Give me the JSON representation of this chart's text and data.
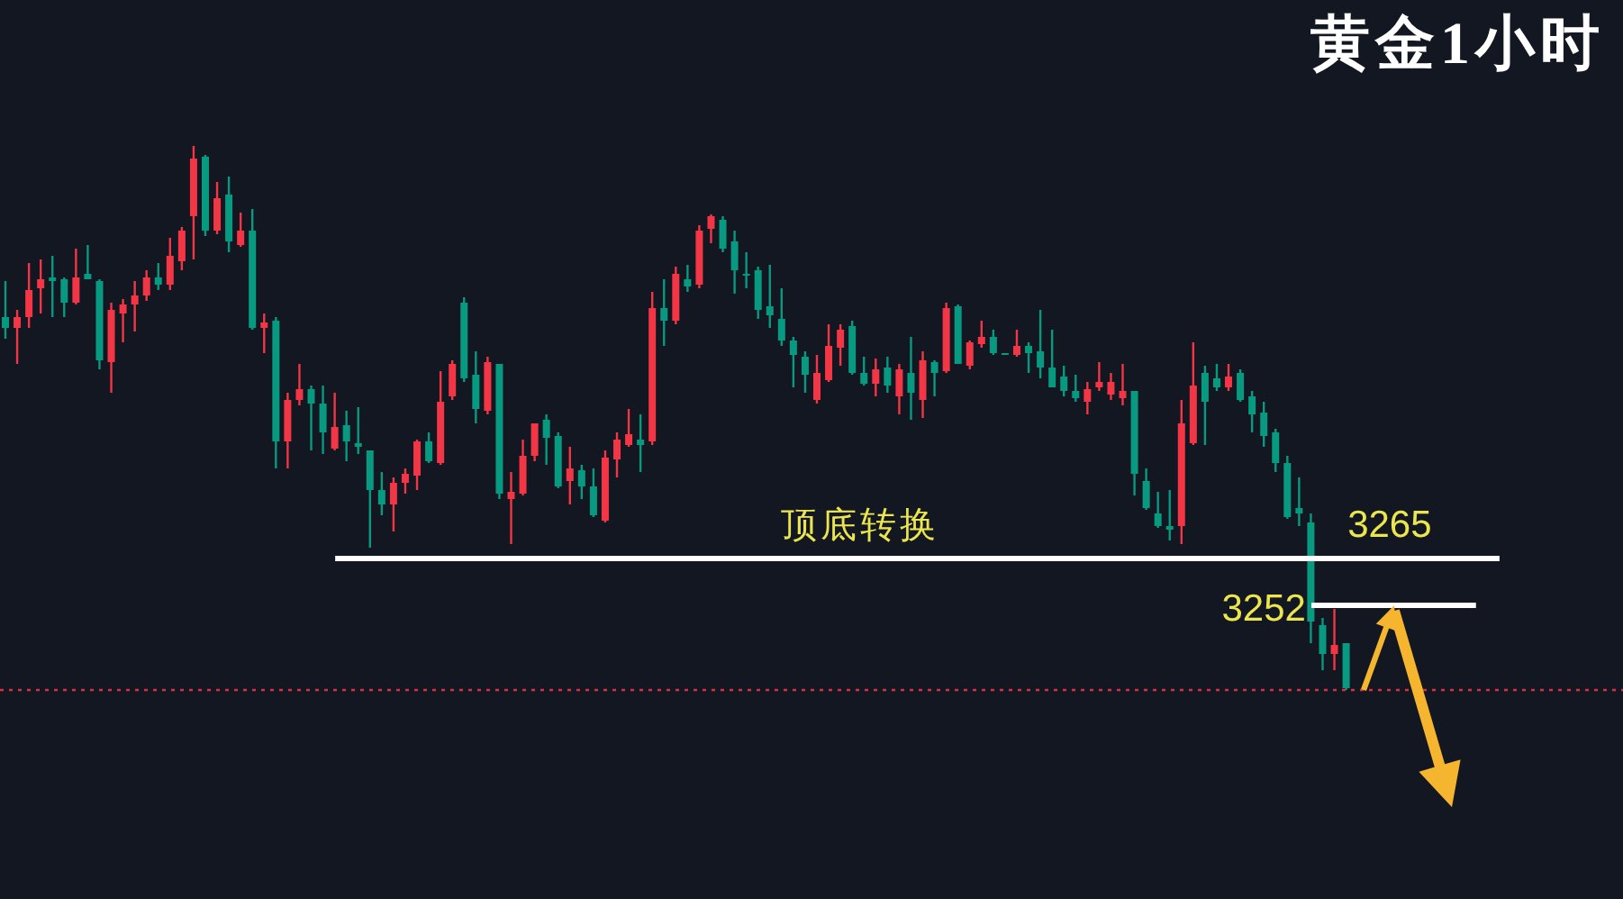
{
  "chart_data": {
    "type": "candlestick",
    "title": "黄金1小时",
    "categories": [
      null,
      null,
      null,
      null,
      null,
      null,
      null,
      null,
      null,
      null,
      null,
      null,
      null,
      null,
      null,
      null,
      null,
      null,
      null,
      null,
      null,
      null,
      null,
      null,
      null,
      null,
      null,
      null,
      null,
      null,
      null,
      null,
      null,
      null,
      null,
      null,
      null,
      null,
      null,
      null,
      null,
      null,
      null,
      null,
      null,
      null,
      null,
      null,
      null,
      null,
      null,
      null,
      null,
      null,
      null,
      null,
      null,
      null,
      null,
      null,
      null,
      null,
      null,
      null,
      null,
      null,
      null,
      null,
      null,
      null,
      null,
      null,
      null,
      null,
      null,
      null,
      null,
      null,
      null,
      null,
      null,
      null,
      null,
      null,
      null,
      null,
      null,
      null,
      null,
      null,
      null,
      null,
      null,
      null,
      null,
      null,
      null,
      null,
      null,
      null,
      null,
      null,
      null,
      null,
      null,
      null,
      null,
      null,
      null,
      null,
      null,
      null,
      null,
      null,
      null
    ],
    "ohlc": [
      [
        3332,
        3342,
        3326,
        3329
      ],
      [
        3329,
        3334,
        3319,
        3332
      ],
      [
        3332,
        3347,
        3329,
        3339.5
      ],
      [
        3340,
        3348,
        3333,
        3342.5
      ],
      [
        3343,
        3349,
        3332,
        3342
      ],
      [
        3342.5,
        3343,
        3332,
        3336
      ],
      [
        3336,
        3351,
        3335.5,
        3343
      ],
      [
        3344,
        3352,
        3342.5,
        3342.5
      ],
      [
        3342,
        3342.5,
        3317.5,
        3320
      ],
      [
        3319.5,
        3336,
        3311,
        3334
      ],
      [
        3333,
        3337,
        3325,
        3335.5
      ],
      [
        3335.5,
        3342,
        3328,
        3338
      ],
      [
        3338,
        3345,
        3336.5,
        3343
      ],
      [
        3343,
        3347,
        3339.5,
        3341
      ],
      [
        3341,
        3354,
        3339.5,
        3349
      ],
      [
        3347.5,
        3357,
        3345,
        3356
      ],
      [
        3360,
        3379.5,
        3348,
        3376
      ],
      [
        3376.5,
        3377,
        3354.5,
        3356
      ],
      [
        3356,
        3369.5,
        3355,
        3365
      ],
      [
        3366,
        3371,
        3350,
        3353
      ],
      [
        3352,
        3361,
        3351.5,
        3356
      ],
      [
        3356,
        3362,
        3328.5,
        3329
      ],
      [
        3329,
        3333,
        3322,
        3330.5
      ],
      [
        3331,
        3332,
        3290,
        3297.5
      ],
      [
        3297.5,
        3311,
        3290,
        3309
      ],
      [
        3309,
        3319,
        3307.5,
        3312
      ],
      [
        3312,
        3313,
        3295,
        3308
      ],
      [
        3308,
        3313,
        3294,
        3300
      ],
      [
        3295.5,
        3311,
        3295,
        3301.5
      ],
      [
        3302,
        3306,
        3292,
        3297.5
      ],
      [
        3297,
        3307,
        3294,
        3296
      ],
      [
        3295,
        3295,
        3268,
        3284
      ],
      [
        3284,
        3289,
        3277,
        3280
      ],
      [
        3280,
        3287.5,
        3272.5,
        3286
      ],
      [
        3286,
        3290,
        3283,
        3288.5
      ],
      [
        3288,
        3298,
        3284,
        3297.5
      ],
      [
        3297.5,
        3300,
        3291.5,
        3292
      ],
      [
        3291.5,
        3317,
        3291,
        3308.5
      ],
      [
        3310,
        3320,
        3309,
        3319
      ],
      [
        3336,
        3337.5,
        3314,
        3315
      ],
      [
        3316,
        3322.5,
        3302.5,
        3306.5
      ],
      [
        3306,
        3321,
        3305,
        3319.5
      ],
      [
        3319,
        3319,
        3281.5,
        3283
      ],
      [
        3281.5,
        3289,
        3269,
        3283.5
      ],
      [
        3283,
        3298,
        3282.5,
        3293.5
      ],
      [
        3293.5,
        3302.5,
        3292,
        3302.5
      ],
      [
        3303.5,
        3305,
        3291,
        3298.5
      ],
      [
        3299,
        3300,
        3284.5,
        3285
      ],
      [
        3286.5,
        3296,
        3280,
        3290
      ],
      [
        3289.5,
        3291,
        3281.5,
        3285
      ],
      [
        3285,
        3290,
        3276.5,
        3277
      ],
      [
        3275.5,
        3295,
        3275,
        3293
      ],
      [
        3292.5,
        3300,
        3287.5,
        3298
      ],
      [
        3296.5,
        3306.5,
        3296,
        3299.5
      ],
      [
        3298,
        3305,
        3289,
        3296.5
      ],
      [
        3297.5,
        3339,
        3296.5,
        3334.5
      ],
      [
        3334.5,
        3342.5,
        3324,
        3331
      ],
      [
        3331,
        3346,
        3330,
        3344
      ],
      [
        3342.5,
        3346.5,
        3339,
        3340.5
      ],
      [
        3341,
        3357.5,
        3340,
        3356
      ],
      [
        3356.5,
        3360.5,
        3352.5,
        3360
      ],
      [
        3359,
        3360,
        3350,
        3351
      ],
      [
        3353,
        3356,
        3338.5,
        3345
      ],
      [
        3344,
        3350,
        3340,
        3343.5
      ],
      [
        3345,
        3346,
        3331.5,
        3334
      ],
      [
        3335,
        3346.5,
        3329,
        3332.5
      ],
      [
        3331.5,
        3340,
        3324,
        3325.5
      ],
      [
        3325.5,
        3326.5,
        3312.5,
        3321.5
      ],
      [
        3321,
        3322.5,
        3311,
        3316
      ],
      [
        3309,
        3321.5,
        3308,
        3316.5
      ],
      [
        3314.5,
        3330,
        3314,
        3324
      ],
      [
        3323.5,
        3330,
        3318.5,
        3328.5
      ],
      [
        3329.5,
        3331,
        3316,
        3316.5
      ],
      [
        3316.5,
        3321,
        3313,
        3313.5
      ],
      [
        3313.5,
        3320.5,
        3310,
        3317.5
      ],
      [
        3318,
        3321,
        3311,
        3313
      ],
      [
        3310,
        3319,
        3305,
        3317.5
      ],
      [
        3316.5,
        3326.5,
        3303.5,
        3311
      ],
      [
        3309,
        3322.5,
        3304,
        3320
      ],
      [
        3319.5,
        3320,
        3310,
        3316.5
      ],
      [
        3317,
        3336,
        3316.5,
        3334.5
      ],
      [
        3335,
        3335.5,
        3319,
        3319
      ],
      [
        3318.5,
        3325.5,
        3317.5,
        3325
      ],
      [
        3324.5,
        3331,
        3323.5,
        3326.5
      ],
      [
        3326.5,
        3328.5,
        3321.5,
        3322
      ],
      [
        3322,
        3322,
        3321.5,
        3321.5
      ],
      [
        3321.5,
        3328.5,
        3321,
        3324
      ],
      [
        3324,
        3325,
        3316.5,
        3322
      ],
      [
        3322.5,
        3334,
        3315,
        3318
      ],
      [
        3318,
        3328.5,
        3312.5,
        3312.5
      ],
      [
        3315.5,
        3318.5,
        3310,
        3311.5
      ],
      [
        3311.5,
        3316,
        3308.5,
        3309.5
      ],
      [
        3308.5,
        3314,
        3305,
        3312
      ],
      [
        3312.5,
        3319.5,
        3311.5,
        3314
      ],
      [
        3310.5,
        3316.5,
        3309,
        3314
      ],
      [
        3309.5,
        3319,
        3307.5,
        3311.5
      ],
      [
        3311.5,
        3311.5,
        3282.5,
        3288.5
      ],
      [
        3286.5,
        3290,
        3278.5,
        3279
      ],
      [
        3277.5,
        3283.5,
        3273.5,
        3274
      ],
      [
        3274,
        3284,
        3270,
        3273
      ],
      [
        3274,
        3309,
        3269,
        3302.5
      ],
      [
        3297,
        3325,
        3296.5,
        3313
      ],
      [
        3316.5,
        3318.5,
        3296.5,
        3308.5
      ],
      [
        3315,
        3319,
        3311.5,
        3312.5
      ],
      [
        3312.5,
        3319,
        3311.5,
        3315.5
      ],
      [
        3316.5,
        3317.5,
        3308.5,
        3309
      ],
      [
        3310,
        3311.5,
        3300,
        3305
      ],
      [
        3305.5,
        3308.5,
        3296,
        3299
      ],
      [
        3300,
        3301,
        3289,
        3291.5
      ],
      [
        3291.5,
        3293.5,
        3276,
        3276.5
      ],
      [
        3279,
        3287.5,
        3274,
        3277.5
      ],
      [
        3275,
        3277.5,
        3241.5,
        3247.5
      ],
      [
        3246.5,
        3248.5,
        3234,
        3238.5
      ],
      [
        3238.5,
        3251,
        3234,
        3241
      ],
      [
        3241.5,
        3241.5,
        3228.5,
        3229
      ]
    ],
    "colors": [
      "#089981",
      "#f23645",
      "#f23645",
      "#f23645",
      "#089981",
      "#089981",
      "#f23645",
      "#089981",
      "#089981",
      "#f23645",
      "#f23645",
      "#f23645",
      "#f23645",
      "#089981",
      "#f23645",
      "#f23645",
      "#f23645",
      "#089981",
      "#f23645",
      "#089981",
      "#f23645",
      "#089981",
      "#f23645",
      "#089981",
      "#f23645",
      "#f23645",
      "#089981",
      "#089981",
      "#f23645",
      "#089981",
      "#089981",
      "#089981",
      "#089981",
      "#f23645",
      "#f23645",
      "#f23645",
      "#089981",
      "#f23645",
      "#f23645",
      "#089981",
      "#089981",
      "#f23645",
      "#089981",
      "#f23645",
      "#f23645",
      "#f23645",
      "#089981",
      "#089981",
      "#f23645",
      "#089981",
      "#089981",
      "#f23645",
      "#f23645",
      "#f23645",
      "#089981",
      "#f23645",
      "#089981",
      "#f23645",
      "#089981",
      "#f23645",
      "#f23645",
      "#089981",
      "#089981",
      "#089981",
      "#089981",
      "#089981",
      "#089981",
      "#089981",
      "#089981",
      "#f23645",
      "#f23645",
      "#f23645",
      "#089981",
      "#089981",
      "#f23645",
      "#089981",
      "#f23645",
      "#089981",
      "#f23645",
      "#089981",
      "#f23645",
      "#089981",
      "#f23645",
      "#f23645",
      "#089981",
      "#089981",
      "#f23645",
      "#089981",
      "#089981",
      "#089981",
      "#089981",
      "#089981",
      "#f23645",
      "#f23645",
      "#f23645",
      "#f23645",
      "#089981",
      "#089981",
      "#089981",
      "#089981",
      "#f23645",
      "#f23645",
      "#089981",
      "#089981",
      "#f23645",
      "#089981",
      "#089981",
      "#089981",
      "#089981",
      "#089981",
      "#089981",
      "#089981",
      "#089981",
      "#f23645",
      "#089981"
    ],
    "ylim": [
      3170.5,
      3420
    ],
    "tick_labels": false,
    "ref_lines": [
      {
        "axis": "y",
        "value": 3265,
        "label": "3265",
        "color": "#ffffff",
        "line_style": "solid"
      },
      {
        "axis": "y",
        "value": 3252,
        "label": "3252",
        "color": "#ffffff",
        "line_style": "solid"
      },
      {
        "axis": "y",
        "value": 3228.5,
        "color": "#d9323e",
        "line_style": "dotted"
      }
    ],
    "annotations": [
      {
        "text": "顶底转换",
        "y": 3265
      }
    ]
  }
}
